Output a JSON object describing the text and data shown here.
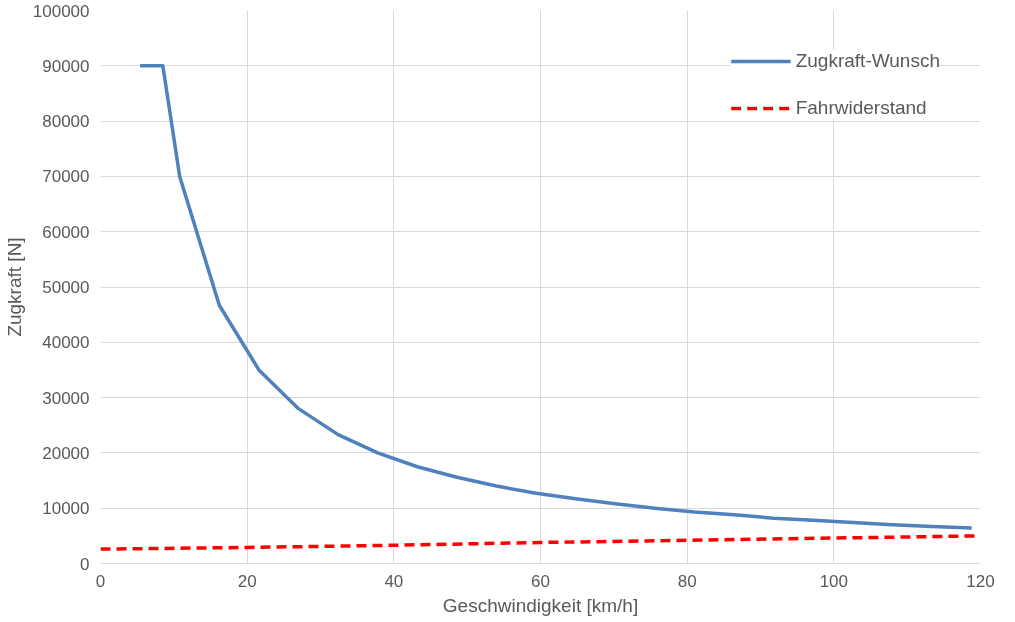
{
  "chart_data": {
    "type": "line",
    "xlabel": "Geschwindigkeit [km/h]",
    "ylabel": "Zugkraft [N]",
    "xlim": [
      0,
      120
    ],
    "xticks": [
      0,
      20,
      40,
      60,
      80,
      100,
      120
    ],
    "ylim": [
      0,
      100000
    ],
    "yticks": [
      0,
      10000,
      20000,
      30000,
      40000,
      50000,
      60000,
      70000,
      80000,
      90000,
      100000
    ],
    "grid": true,
    "legend": "top right",
    "marker": "none",
    "series": [
      {
        "name": "Zugkraft-Wunsch",
        "color": "#4f81bd",
        "line_style": "solid",
        "x": [
          5.4,
          8.5,
          10.8,
          16.2,
          21.6,
          27,
          32.4,
          37.8,
          43.2,
          48.6,
          54,
          59.4,
          64.8,
          70.2,
          75.6,
          81,
          86.4,
          91.8,
          97.2,
          102.6,
          108,
          113.4,
          118.8
        ],
        "values": [
          90000,
          90000,
          70000,
          46700,
          35000,
          28000,
          23300,
          20000,
          17500,
          15600,
          14000,
          12700,
          11700,
          10800,
          10000,
          9300,
          8800,
          8200,
          7800,
          7400,
          7000,
          6700,
          6400
        ]
      },
      {
        "name": "Fahrwiderstand",
        "color": "#ff0000",
        "line_style": "dashed",
        "x": [
          0,
          20,
          40,
          60,
          80,
          100,
          120
        ],
        "values": [
          2600,
          2900,
          3300,
          3800,
          4200,
          4600,
          5000
        ]
      }
    ]
  }
}
